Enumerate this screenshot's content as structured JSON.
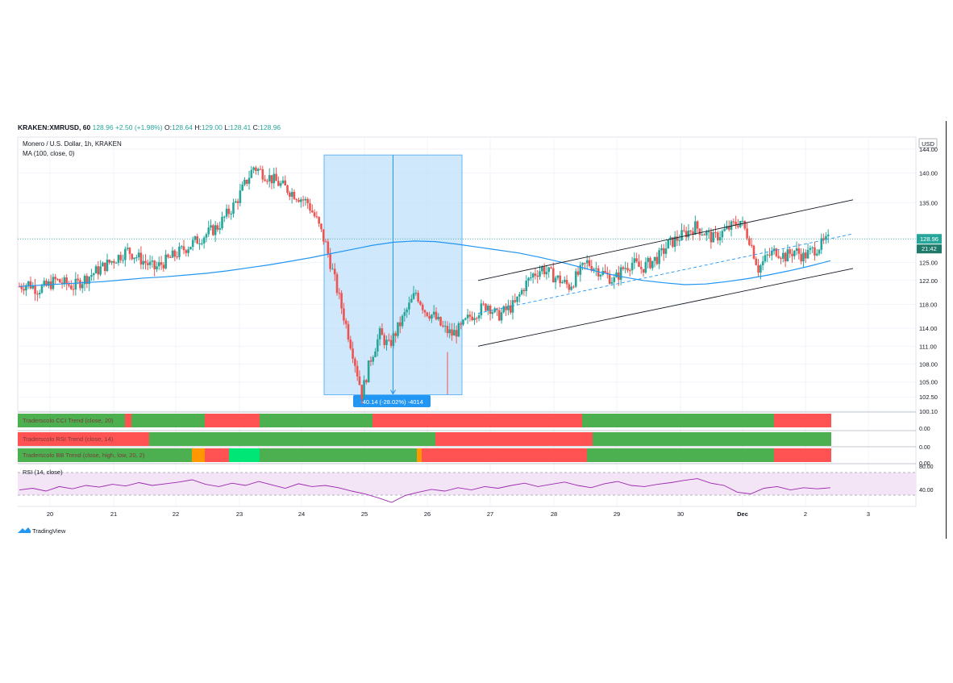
{
  "header": {
    "symbol": "KRAKEN:XMRUSD, 60",
    "last": "128.96",
    "change": "+2.50 (+1.98%)",
    "o_label": "O:",
    "o_value": "128.64",
    "h_label": "H:",
    "h_value": "129.00",
    "l_label": "L:",
    "l_value": "128.41",
    "c_label": "C:",
    "c_value": "128.96"
  },
  "legend": {
    "title": "Monero / U.S. Dollar, 1h, KRAKEN",
    "ma": "MA (100, close, 0)"
  },
  "price_axis": {
    "currency": "USD",
    "ticks": [
      "144.00",
      "140.00",
      "135.00",
      "129.00",
      "125.00",
      "122.00",
      "118.00",
      "114.00",
      "111.00",
      "108.00",
      "105.00",
      "102.50",
      "100.10"
    ],
    "last_price": "128.96",
    "countdown": "21:42"
  },
  "measure_label": "-40.14 (-28.02%) -4014",
  "indicators": [
    {
      "name": "Traderscolo CCI Trend (close, 20)",
      "axis": "0.00"
    },
    {
      "name": "Traderscolo RSI Trend (close, 14)",
      "axis": "0.00"
    },
    {
      "name": "Traderscolo BB Trend (close, high, low, 20, 2)",
      "axis": "0.00"
    }
  ],
  "rsi": {
    "name": "RSI (14, close)",
    "ticks": [
      "80.00",
      "40.00"
    ]
  },
  "time_axis": [
    "20",
    "21",
    "22",
    "23",
    "24",
    "25",
    "26",
    "27",
    "28",
    "29",
    "30",
    "Dec",
    "2",
    "3"
  ],
  "footer": {
    "logo": "TradingView"
  },
  "colors": {
    "up": "#26a69a",
    "down": "#ef5350",
    "ma": "#2196f3",
    "bar_green": "#4caf50",
    "bar_red": "#ff5252",
    "bar_orange": "#ff9800",
    "bar_lime": "#00e676",
    "rsi_line": "#9c27b0",
    "rsi_fill": "#f3e5f5",
    "measure_fill": "#bbdefb"
  },
  "chart_data": {
    "type": "candlestick",
    "title": "Monero / U.S. Dollar, 1h, KRAKEN",
    "ylim": [
      100.1,
      146.0
    ],
    "x_labels": [
      "20",
      "21",
      "22",
      "23",
      "24",
      "25",
      "26",
      "27",
      "28",
      "29",
      "30",
      "Dec",
      "2",
      "3"
    ],
    "close_path": [
      121,
      121.5,
      120.5,
      121,
      122,
      121.5,
      121,
      122,
      123,
      124,
      125,
      126,
      127,
      126,
      125,
      124,
      125,
      126,
      127,
      128,
      129,
      130,
      131,
      133,
      135,
      138,
      141,
      140,
      139,
      138,
      137,
      136,
      135,
      132,
      128,
      122,
      116,
      110,
      103,
      109,
      113,
      111,
      114,
      117,
      120,
      117,
      116,
      114,
      113,
      114,
      116,
      117,
      118,
      116,
      117,
      118,
      121,
      123,
      124,
      123,
      122,
      121,
      123,
      125,
      124,
      123,
      122,
      124,
      125,
      124,
      125,
      126,
      128,
      129,
      130,
      131,
      130,
      129,
      130,
      131,
      132,
      129,
      124,
      126,
      127,
      126,
      127,
      126,
      127,
      128,
      128.96
    ],
    "ma_path": [
      121,
      121.2,
      121.4,
      121.6,
      121.8,
      122.1,
      122.4,
      122.6,
      122.9,
      123.2,
      123.6,
      124.1,
      124.6,
      125.2,
      125.8,
      126.5,
      127.2,
      127.9,
      128.4,
      128.6,
      128.5,
      128.1,
      127.6,
      127.1,
      126.6,
      125.9,
      125.1,
      124.2,
      123.3,
      122.6,
      122.0,
      121.6,
      121.3,
      121.4,
      121.8,
      122.3,
      122.9,
      123.6,
      124.4,
      125.3
    ],
    "channel": {
      "upper": [
        [
          27,
          122
        ],
        [
          2.5,
          135
        ]
      ],
      "lower": [
        [
          27,
          111
        ],
        [
          2.5,
          124
        ]
      ]
    },
    "rsi_values": [
      52,
      55,
      50,
      58,
      54,
      60,
      57,
      62,
      59,
      65,
      60,
      63,
      66,
      70,
      62,
      58,
      64,
      60,
      67,
      61,
      55,
      63,
      58,
      60,
      56,
      50,
      45,
      38,
      30,
      42,
      48,
      53,
      50,
      56,
      52,
      58,
      55,
      60,
      64,
      58,
      62,
      66,
      60,
      56,
      63,
      67,
      60,
      58,
      62,
      65,
      69,
      72,
      64,
      60,
      48,
      45,
      55,
      58,
      52,
      56,
      54,
      56
    ],
    "measure": {
      "from": 143.0,
      "to": 102.86,
      "change": -40.14,
      "percent": -28.02,
      "ticks": -4014
    }
  }
}
